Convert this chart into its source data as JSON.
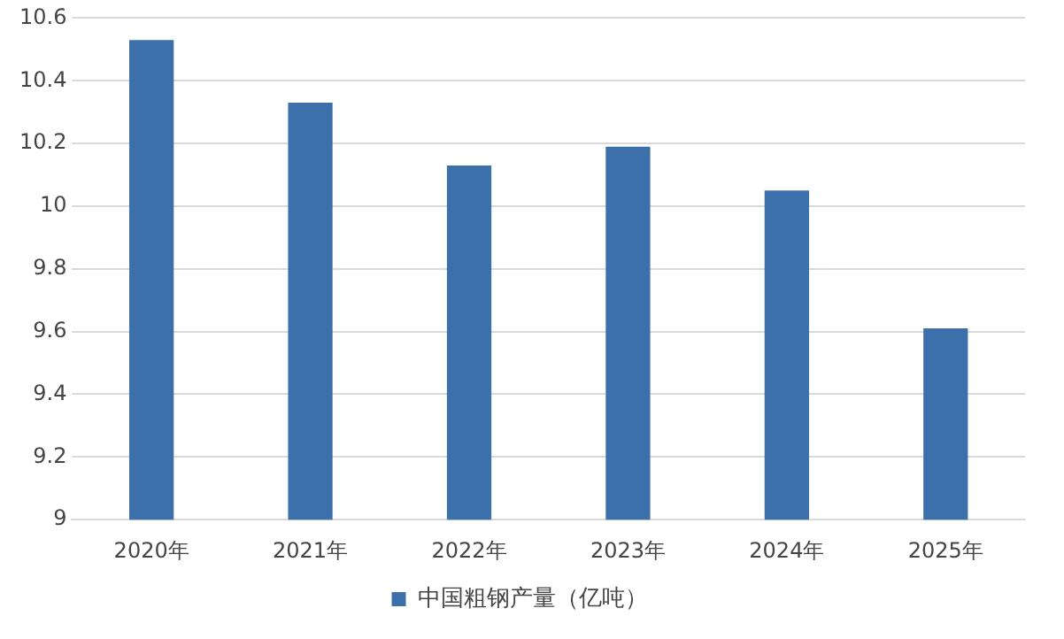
{
  "chart_data": {
    "type": "bar",
    "categories": [
      "2020年",
      "2021年",
      "2022年",
      "2023年",
      "2024年",
      "2025年"
    ],
    "series": [
      {
        "name": "中国粗钢产量（亿吨）",
        "color": "#3b70ab",
        "values": [
          10.53,
          10.33,
          10.13,
          10.19,
          10.05,
          9.61
        ]
      }
    ],
    "ylim": [
      9,
      10.6
    ],
    "yticks": [
      9,
      9.2,
      9.4,
      9.6,
      9.8,
      10,
      10.2,
      10.4,
      10.6
    ],
    "grid": "y",
    "legend": "bottom"
  }
}
